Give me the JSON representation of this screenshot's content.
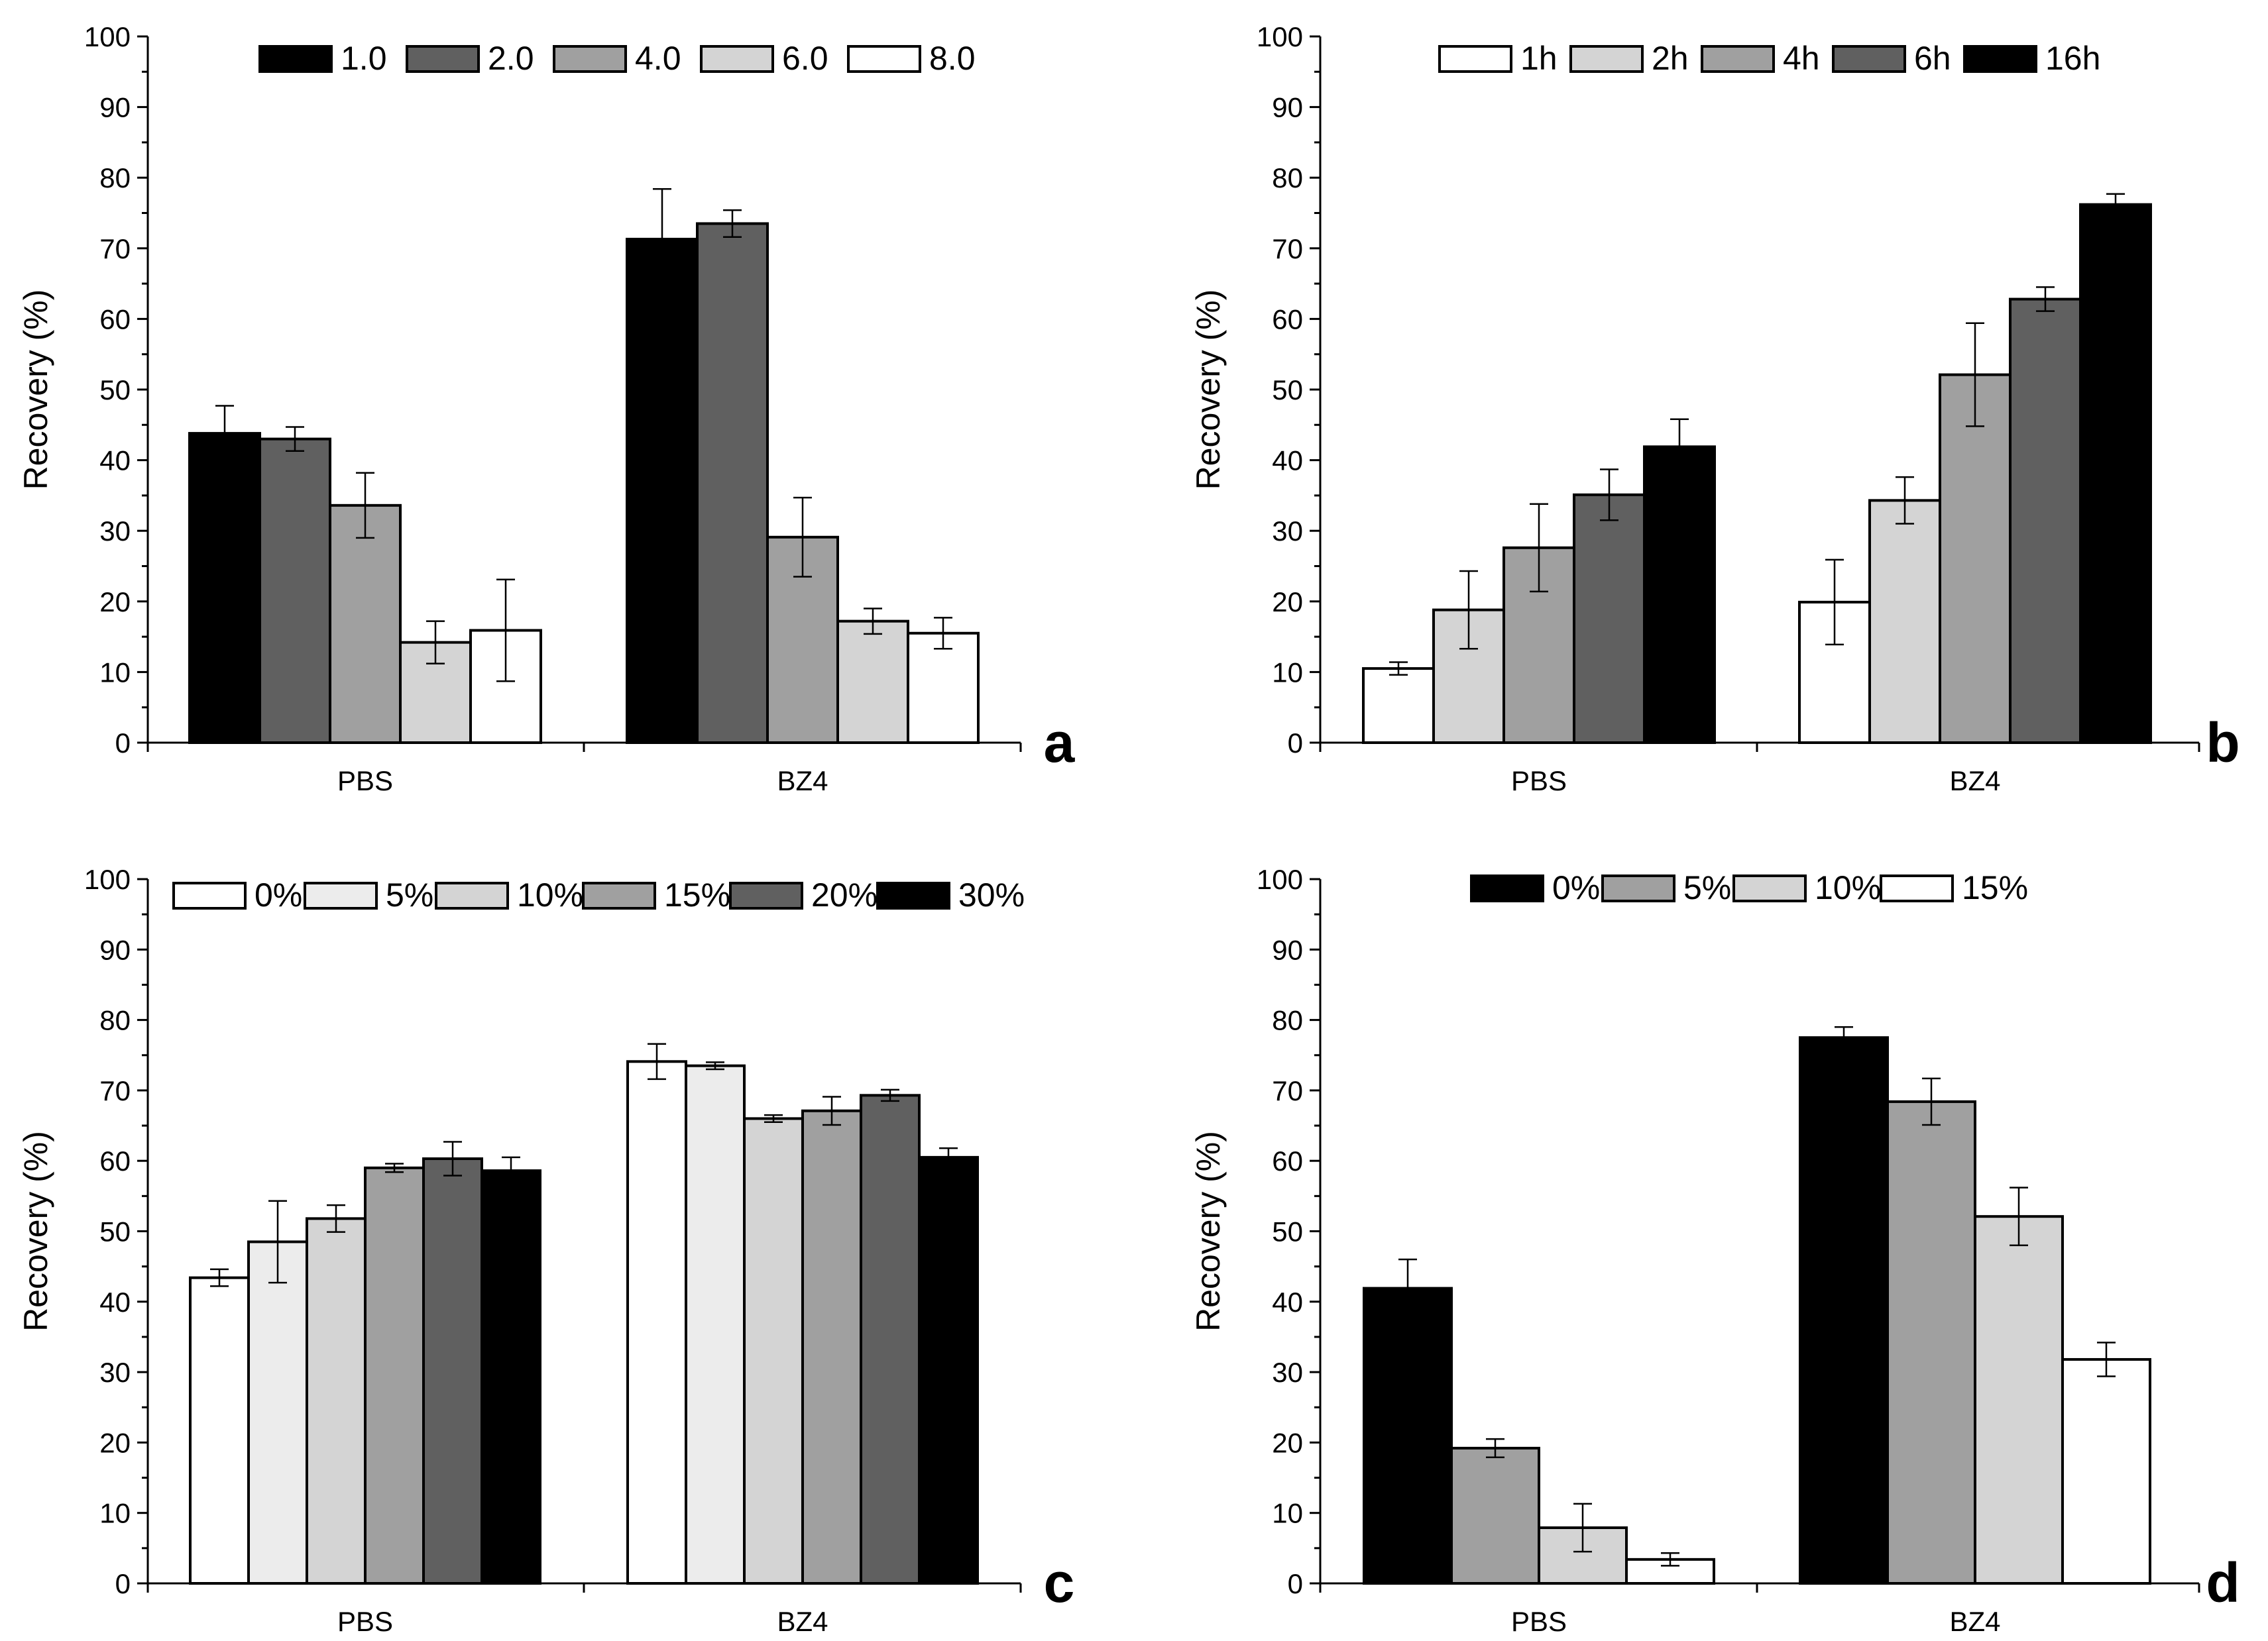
{
  "figure": {
    "ylabel": "Recovery (%)"
  },
  "chart_data": [
    {
      "type": "bar",
      "panel": "a",
      "ylabel": "Recovery (%)",
      "ylim": [
        0,
        100
      ],
      "yticks": [
        0,
        10,
        20,
        30,
        40,
        50,
        60,
        70,
        80,
        90,
        100
      ],
      "categories": [
        "PBS",
        "BZ4"
      ],
      "series": [
        {
          "name": "1.0",
          "color": "#000000",
          "values": [
            43.8,
            71.3
          ],
          "errors": [
            3.9,
            7.1
          ]
        },
        {
          "name": "2.0",
          "color": "#606060",
          "values": [
            43.0,
            73.5
          ],
          "errors": [
            1.7,
            1.9
          ]
        },
        {
          "name": "4.0",
          "color": "#a0a0a0",
          "values": [
            33.6,
            29.1
          ],
          "errors": [
            4.6,
            5.6
          ]
        },
        {
          "name": "6.0",
          "color": "#d4d4d4",
          "values": [
            14.2,
            17.2
          ],
          "errors": [
            3.0,
            1.8
          ]
        },
        {
          "name": "8.0",
          "color": "#ffffff",
          "values": [
            15.9,
            15.5
          ],
          "errors": [
            7.2,
            2.2
          ]
        }
      ]
    },
    {
      "type": "bar",
      "panel": "b",
      "ylabel": "Recovery (%)",
      "ylim": [
        0,
        100
      ],
      "yticks": [
        0,
        10,
        20,
        30,
        40,
        50,
        60,
        70,
        80,
        90,
        100
      ],
      "categories": [
        "PBS",
        "BZ4"
      ],
      "series": [
        {
          "name": "1h",
          "color": "#ffffff",
          "values": [
            10.5,
            19.9
          ],
          "errors": [
            0.9,
            6.0
          ]
        },
        {
          "name": "2h",
          "color": "#d4d4d4",
          "values": [
            18.8,
            34.3
          ],
          "errors": [
            5.5,
            3.3
          ]
        },
        {
          "name": "4h",
          "color": "#a0a0a0",
          "values": [
            27.6,
            52.1
          ],
          "errors": [
            6.2,
            7.3
          ]
        },
        {
          "name": "6h",
          "color": "#606060",
          "values": [
            35.1,
            62.8
          ],
          "errors": [
            3.6,
            1.7
          ]
        },
        {
          "name": "16h",
          "color": "#000000",
          "values": [
            41.9,
            76.2
          ],
          "errors": [
            3.9,
            1.5
          ]
        }
      ]
    },
    {
      "type": "bar",
      "panel": "c",
      "ylabel": "Recovery (%)",
      "ylim": [
        0,
        100
      ],
      "yticks": [
        0,
        10,
        20,
        30,
        40,
        50,
        60,
        70,
        80,
        90,
        100
      ],
      "categories": [
        "PBS",
        "BZ4"
      ],
      "series": [
        {
          "name": "0%",
          "color": "#ffffff",
          "values": [
            43.4,
            74.1
          ],
          "errors": [
            1.2,
            2.5
          ]
        },
        {
          "name": "5%",
          "color": "#ececec",
          "values": [
            48.5,
            73.5
          ],
          "errors": [
            5.8,
            0.5
          ]
        },
        {
          "name": "10%",
          "color": "#d4d4d4",
          "values": [
            51.8,
            66.0
          ],
          "errors": [
            1.9,
            0.5
          ]
        },
        {
          "name": "15%",
          "color": "#a0a0a0",
          "values": [
            59.0,
            67.1
          ],
          "errors": [
            0.6,
            2.0
          ]
        },
        {
          "name": "20%",
          "color": "#606060",
          "values": [
            60.3,
            69.3
          ],
          "errors": [
            2.4,
            0.8
          ]
        },
        {
          "name": "30%",
          "color": "#000000",
          "values": [
            58.6,
            60.5
          ],
          "errors": [
            1.9,
            1.3
          ]
        }
      ]
    },
    {
      "type": "bar",
      "panel": "d",
      "ylabel": "Recovery (%)",
      "ylim": [
        0,
        100
      ],
      "yticks": [
        0,
        10,
        20,
        30,
        40,
        50,
        60,
        70,
        80,
        90,
        100
      ],
      "categories": [
        "PBS",
        "BZ4"
      ],
      "series": [
        {
          "name": "0%",
          "color": "#000000",
          "values": [
            41.9,
            77.5
          ],
          "errors": [
            4.1,
            1.5
          ]
        },
        {
          "name": "5%",
          "color": "#a0a0a0",
          "values": [
            19.2,
            68.4
          ],
          "errors": [
            1.3,
            3.3
          ]
        },
        {
          "name": "10%",
          "color": "#d4d4d4",
          "values": [
            7.9,
            52.1
          ],
          "errors": [
            3.4,
            4.1
          ]
        },
        {
          "name": "15%",
          "color": "#ffffff",
          "values": [
            3.4,
            31.8
          ],
          "errors": [
            0.9,
            2.4
          ]
        }
      ]
    }
  ]
}
